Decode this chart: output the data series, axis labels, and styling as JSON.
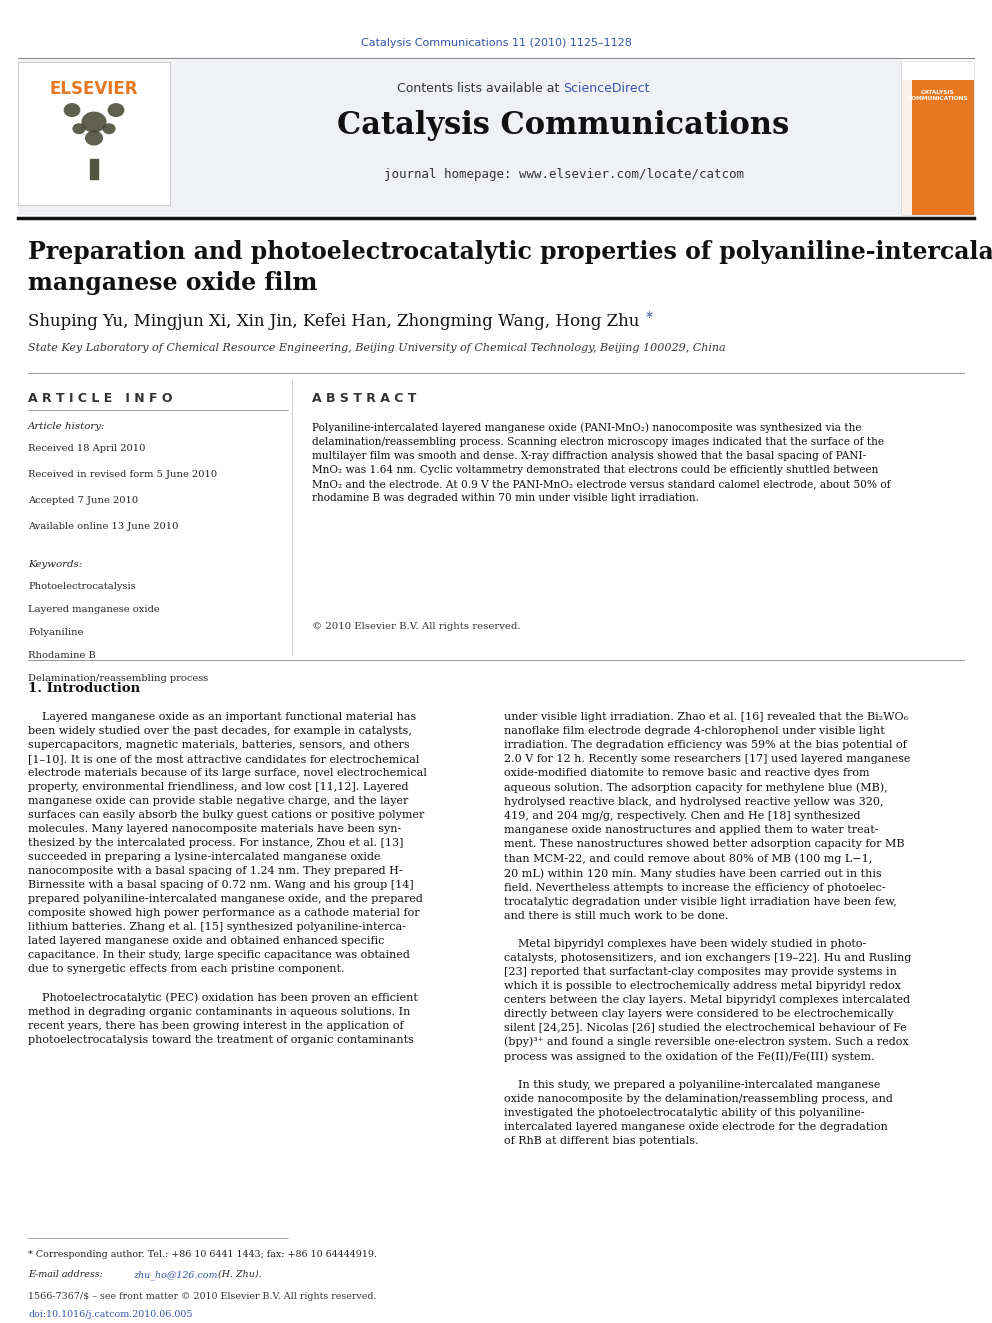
{
  "page_width": 9.92,
  "page_height": 13.23,
  "background_color": "#ffffff",
  "journal_ref": "Catalysis Communications 11 (2010) 1125–1128",
  "journal_ref_color": "#3355aa",
  "journal_ref_fontsize": 8,
  "journal_name": "Catalysis Communications",
  "journal_name_fontsize": 22,
  "homepage_text": "journal homepage: www.elsevier.com/locate/catcom",
  "homepage_fontsize": 9,
  "contents_text": "Contents lists available at ",
  "sciencedirect_text": "ScienceDirect",
  "sciencedirect_color": "#3355aa",
  "contents_fontsize": 9,
  "elsevier_color": "#E87722",
  "paper_title": "Preparation and photoelectrocatalytic properties of polyaniline-intercalated layered\nmanganese oxide film",
  "paper_title_fontsize": 17,
  "authors": "Shuping Yu, Mingjun Xi, Xin Jin, Kefei Han, Zhongming Wang, Hong Zhu ",
  "authors_fontsize": 12,
  "affiliation": "State Key Laboratory of Chemical Resource Engineering, Beijing University of Chemical Technology, Beijing 100029, China",
  "affiliation_fontsize": 8,
  "article_info_header": "A R T I C L E   I N F O",
  "abstract_header": "A B S T R A C T",
  "section_header_fontsize": 9,
  "article_history_label": "Article history:",
  "received_1": "Received 18 April 2010",
  "received_2": "Received in revised form 5 June 2010",
  "accepted": "Accepted 7 June 2010",
  "available": "Available online 13 June 2010",
  "keywords_label": "Keywords:",
  "keyword_1": "Photoelectrocatalysis",
  "keyword_2": "Layered manganese oxide",
  "keyword_3": "Polyaniline",
  "keyword_4": "Rhodamine B",
  "keyword_5": "Delamination/reassembling process",
  "abstract_text": "Polyaniline-intercalated layered manganese oxide (PANI-MnO₂) nanocomposite was synthesized via the\ndelamination/reassembling process. Scanning electron microscopy images indicated that the surface of the\nmultilayer film was smooth and dense. X-ray diffraction analysis showed that the basal spacing of PANI-\nMnO₂ was 1.64 nm. Cyclic voltammetry demonstrated that electrons could be efficiently shuttled between\nMnO₂ and the electrode. At 0.9 V the PANI-MnO₂ electrode versus standard calomel electrode, about 50% of\nrhodamine B was degraded within 70 min under visible light irradiation.",
  "copyright": "© 2010 Elsevier B.V. All rights reserved.",
  "intro_header": "1. Introduction",
  "intro_text_left": "    Layered manganese oxide as an important functional material has\nbeen widely studied over the past decades, for example in catalysts,\nsupercapacitors, magnetic materials, batteries, sensors, and others\n[1–10]. It is one of the most attractive candidates for electrochemical\nelectrode materials because of its large surface, novel electrochemical\nproperty, environmental friendliness, and low cost [11,12]. Layered\nmanganese oxide can provide stable negative charge, and the layer\nsurfaces can easily absorb the bulky guest cations or positive polymer\nmolecules. Many layered nanocomposite materials have been syn-\nthesized by the intercalated process. For instance, Zhou et al. [13]\nsucceeded in preparing a lysine-intercalated manganese oxide\nnanocomposite with a basal spacing of 1.24 nm. They prepared H-\nBirnessite with a basal spacing of 0.72 nm. Wang and his group [14]\nprepared polyaniline-intercalated manganese oxide, and the prepared\ncomposite showed high power performance as a cathode material for\nlithium batteries. Zhang et al. [15] synthesized polyaniline-interca-\nlated layered manganese oxide and obtained enhanced specific\ncapacitance. In their study, large specific capacitance was obtained\ndue to synergetic effects from each pristine component.\n\n    Photoelectrocatalytic (PEC) oxidation has been proven an efficient\nmethod in degrading organic contaminants in aqueous solutions. In\nrecent years, there has been growing interest in the application of\nphotoelectrocatalysis toward the treatment of organic contaminants",
  "intro_text_right": "under visible light irradiation. Zhao et al. [16] revealed that the Bi₂WO₆\nnanoflake film electrode degrade 4-chlorophenol under visible light\nirradiation. The degradation efficiency was 59% at the bias potential of\n2.0 V for 12 h. Recently some researchers [17] used layered manganese\noxide-modified diatomite to remove basic and reactive dyes from\naqueous solution. The adsorption capacity for methylene blue (MB),\nhydrolysed reactive black, and hydrolysed reactive yellow was 320,\n419, and 204 mg/g, respectively. Chen and He [18] synthesized\nmanganese oxide nanostructures and applied them to water treat-\nment. These nanostructures showed better adsorption capacity for MB\nthan MCM-22, and could remove about 80% of MB (100 mg L−1,\n20 mL) within 120 min. Many studies have been carried out in this\nfield. Nevertheless attempts to increase the efficiency of photoelec-\ntrocatalytic degradation under visible light irradiation have been few,\nand there is still much work to be done.\n\n    Metal bipyridyl complexes have been widely studied in photo-\ncatalysts, photosensitizers, and ion exchangers [19–22]. Hu and Rusling\n[23] reported that surfactant-clay composites may provide systems in\nwhich it is possible to electrochemically address metal bipyridyl redox\ncenters between the clay layers. Metal bipyridyl complexes intercalated\ndirectly between clay layers were considered to be electrochemically\nsilent [24,25]. Nicolas [26] studied the electrochemical behaviour of Fe\n(bpy)³⁺ and found a single reversible one-electron system. Such a redox\nprocess was assigned to the oxidation of the Fe(II)/Fe(III) system.\n\n    In this study, we prepared a polyaniline-intercalated manganese\noxide nanocomposite by the delamination/reassembling process, and\ninvestigated the photoelectrocatalytic ability of this polyaniline-\nintercalated layered manganese oxide electrode for the degradation\nof RhB at different bias potentials.",
  "footnote_star": "* Corresponding author. Tel.: +86 10 6441 1443; fax: +86 10 64444919.",
  "footnote_email_prefix": "E-mail address: ",
  "footnote_email_link": "zhu_ho@126.com",
  "footnote_email_suffix": " (H. Zhu).",
  "footer_issn": "1566-7367/$ – see front matter © 2010 Elsevier B.V. All rights reserved.",
  "footer_doi": "doi:10.1016/j.catcom.2010.06.005",
  "body_fontsize": 8.0,
  "text_color": "#000000"
}
